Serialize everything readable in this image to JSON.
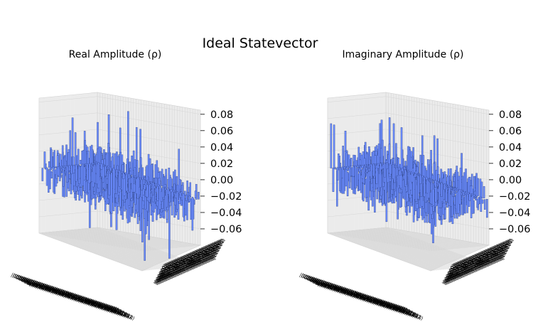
{
  "figure": {
    "title": "Ideal Statevector"
  },
  "chart_data": [
    {
      "type": "bar3d",
      "title": "Real Amplitude (ρ)",
      "grid": true,
      "bar_color": "#6b8cff",
      "edge_color": "#2b3f7a",
      "zlim": [
        -0.08,
        0.085
      ],
      "zticks": [
        "0.08",
        "0.06",
        "0.04",
        "0.02",
        "0.00",
        "−0.02",
        "−0.04",
        "−0.06"
      ],
      "matrix_dim": 64,
      "value_range": [
        -0.07,
        0.08
      ],
      "basis_label_template": "|{k}⟩",
      "basis_labels_overlap": true
    },
    {
      "type": "bar3d",
      "title": "Imaginary Amplitude (ρ)",
      "grid": true,
      "bar_color": "#6b8cff",
      "edge_color": "#2b3f7a",
      "zlim": [
        -0.08,
        0.085
      ],
      "zticks": [
        "0.08",
        "0.06",
        "0.04",
        "0.02",
        "0.00",
        "−0.02",
        "−0.04",
        "−0.06"
      ],
      "matrix_dim": 64,
      "value_range": [
        -0.07,
        0.08
      ],
      "basis_label_template": "|{k}⟩",
      "basis_labels_overlap": true
    }
  ]
}
